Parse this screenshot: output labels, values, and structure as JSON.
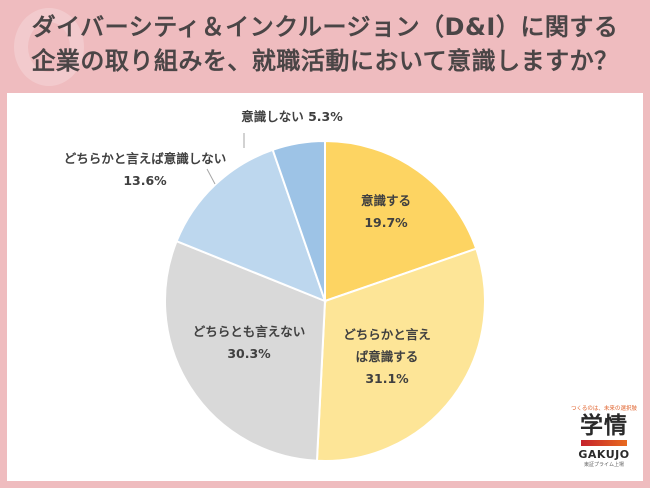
{
  "header": {
    "title_line1": "ダイバーシティ＆インクルージョン（D&I）に関する",
    "title_line2": "企業の取り組みを、就職活動において意識しますか？"
  },
  "logo": {
    "tagline": "つくるのは、未来の選択肢",
    "name_kanji": "学情",
    "name_roman": "GAKUJO",
    "subtext": "東証プライム上場"
  },
  "colors": {
    "background": "#efbcbf",
    "panel": "#ffffff",
    "slice_1": "#fdd462",
    "slice_2": "#fde597",
    "slice_3": "#d9d9d9",
    "slice_4": "#bdd7ee",
    "slice_5": "#9dc3e6"
  },
  "labels": {
    "s1_name": "意識する",
    "s1_value": "19.7%",
    "s2_name_a": "どちらかと言え",
    "s2_name_b": "ば意識する",
    "s2_value": "31.1%",
    "s3_name": "どちらとも言えない",
    "s3_value": "30.3%",
    "s4_name": "どちらかと言えば意識しない",
    "s4_value": "13.6%",
    "s5_text": "意識しない 5.3%"
  },
  "chart_data": {
    "type": "pie",
    "title": "ダイバーシティ＆インクルージョン（D&I）に関する企業の取り組みを、就職活動において意識しますか？",
    "categories": [
      "意識する",
      "どちらかと言えば意識する",
      "どちらとも言えない",
      "どちらかと言えば意識しない",
      "意識しない"
    ],
    "values": [
      19.7,
      31.1,
      30.3,
      13.6,
      5.3
    ],
    "unit": "%",
    "start_angle": "12 o'clock",
    "direction": "clockwise",
    "colors": [
      "#fdd462",
      "#fde597",
      "#d9d9d9",
      "#bdd7ee",
      "#9dc3e6"
    ],
    "legend": "none (data labels on/near slices)"
  }
}
